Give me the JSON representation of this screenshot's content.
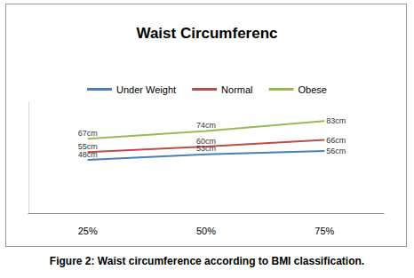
{
  "chart_data": {
    "type": "line",
    "title": "Waist Circumferenc",
    "caption": "Figure 2: Waist circumference according to BMI classification.",
    "categories": [
      "25%",
      "50%",
      "75%"
    ],
    "series": [
      {
        "name": "Under Weight",
        "color": "#4a7ebb",
        "values": [
          48,
          53,
          56
        ],
        "value_labels": [
          "48cm",
          "53cm",
          "56cm"
        ]
      },
      {
        "name": "Normal",
        "color": "#be4b48",
        "values": [
          55,
          60,
          66
        ],
        "value_labels": [
          "55cm",
          "60cm",
          "66cm"
        ]
      },
      {
        "name": "Obese",
        "color": "#98b954",
        "values": [
          67,
          74,
          83
        ],
        "value_labels": [
          "67cm",
          "74cm",
          "83cm"
        ]
      }
    ],
    "ylim": [
      0,
      100
    ],
    "grid": false,
    "legend": "top",
    "data_labels": true,
    "tick_labels": "x"
  }
}
